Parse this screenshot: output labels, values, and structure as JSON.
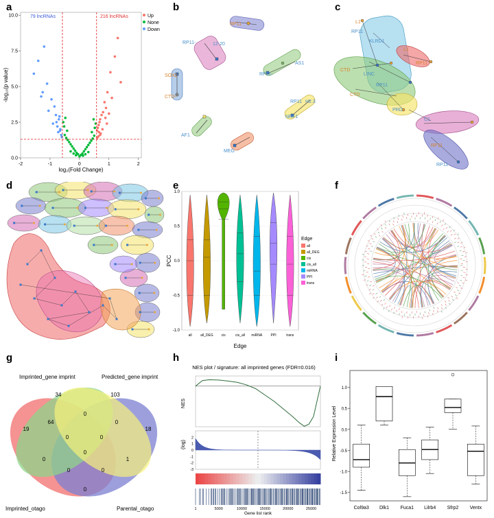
{
  "panel_labels": {
    "a": "a",
    "b": "b",
    "c": "c",
    "d": "d",
    "e": "e",
    "f": "f",
    "g": "g",
    "h": "h",
    "i": "i"
  },
  "panel_a": {
    "left_count": "79 lncRNAs",
    "right_count": "216 lncRNAs",
    "legend": [
      "Up",
      "None",
      "Down"
    ],
    "colors": {
      "Up": "#f8766d",
      "None": "#00ba38",
      "Down": "#619cff",
      "threshold": "#e41a1c"
    },
    "xlabel": "log₂(Fold Change)",
    "ylabel": "-log₁₀(p value)",
    "chart_data": {
      "type": "scatter",
      "xlim": [
        -2,
        2.1
      ],
      "ylim": [
        0,
        10.2
      ],
      "x_ticks": [
        "-2",
        "-1",
        "0",
        "1",
        "2"
      ],
      "y_ticks": [
        "0.0",
        "2.5",
        "5.0",
        "7.5",
        "10.0"
      ],
      "thresholds": {
        "x": [
          -0.58,
          0.58
        ],
        "y": 1.3
      },
      "series": [
        {
          "name": "Down",
          "points": [
            [
              -1.2,
              7.8
            ],
            [
              -1.4,
              6.8
            ],
            [
              -1.55,
              5.9
            ],
            [
              -1.1,
              5.2
            ],
            [
              -1.25,
              4.6
            ],
            [
              -0.95,
              4.1
            ],
            [
              -0.85,
              3.6
            ],
            [
              -1.05,
              3.3
            ],
            [
              -0.8,
              3.0
            ],
            [
              -0.7,
              2.7
            ],
            [
              -0.9,
              2.4
            ],
            [
              -0.75,
              2.2
            ],
            [
              -0.65,
              2.0
            ],
            [
              -0.72,
              1.8
            ],
            [
              -0.62,
              1.6
            ],
            [
              -0.6,
              1.45
            ],
            [
              -0.68,
              2.9
            ],
            [
              -1.3,
              4.3
            ],
            [
              -0.78,
              2.5
            ],
            [
              -0.66,
              1.9
            ]
          ]
        },
        {
          "name": "Up",
          "points": [
            [
              1.3,
              8.4
            ],
            [
              1.2,
              7.1
            ],
            [
              1.05,
              6.0
            ],
            [
              1.4,
              5.3
            ],
            [
              0.95,
              4.6
            ],
            [
              1.1,
              4.2
            ],
            [
              0.85,
              3.9
            ],
            [
              0.9,
              3.5
            ],
            [
              0.8,
              3.2
            ],
            [
              0.75,
              3.0
            ],
            [
              0.7,
              2.7
            ],
            [
              0.68,
              2.5
            ],
            [
              0.65,
              2.3
            ],
            [
              0.62,
              2.1
            ],
            [
              0.6,
              1.9
            ],
            [
              0.72,
              1.7
            ],
            [
              0.64,
              1.5
            ],
            [
              0.6,
              1.4
            ],
            [
              0.88,
              2.8
            ],
            [
              1.0,
              3.1
            ],
            [
              0.78,
              2.0
            ],
            [
              0.7,
              1.6
            ],
            [
              0.93,
              2.4
            ],
            [
              0.66,
              1.8
            ]
          ]
        },
        {
          "name": "None",
          "points": [
            [
              0,
              0.1
            ],
            [
              0.05,
              0.2
            ],
            [
              -0.05,
              0.25
            ],
            [
              0.1,
              0.3
            ],
            [
              -0.1,
              0.35
            ],
            [
              0.15,
              0.45
            ],
            [
              -0.15,
              0.5
            ],
            [
              0.2,
              0.6
            ],
            [
              -0.2,
              0.65
            ],
            [
              0.25,
              0.75
            ],
            [
              -0.25,
              0.8
            ],
            [
              0.3,
              0.9
            ],
            [
              -0.3,
              0.95
            ],
            [
              0.35,
              1.05
            ],
            [
              -0.35,
              1.1
            ],
            [
              0.4,
              1.2
            ],
            [
              -0.4,
              1.25
            ],
            [
              0.45,
              1.35
            ],
            [
              -0.45,
              1.4
            ],
            [
              0.5,
              1.55
            ],
            [
              -0.5,
              1.6
            ],
            [
              0.42,
              1.8
            ],
            [
              -0.42,
              1.9
            ],
            [
              0.52,
              2.1
            ],
            [
              -0.52,
              2.2
            ],
            [
              0.55,
              2.4
            ],
            [
              -0.55,
              2.5
            ],
            [
              0.48,
              2.7
            ],
            [
              -0.48,
              2.8
            ],
            [
              0.3,
              0.4
            ],
            [
              -0.3,
              0.45
            ],
            [
              0.2,
              0.25
            ],
            [
              -0.2,
              0.3
            ],
            [
              0.12,
              0.15
            ],
            [
              -0.12,
              0.18
            ]
          ]
        }
      ]
    }
  },
  "panel_b": {
    "node_labels": [
      "RP11",
      "12-20",
      "RP11-",
      "RP11-",
      "SOX2",
      "CTD-",
      "ODIS",
      "AS1",
      "RP11",
      "H2.3",
      "NRF1",
      "AF1",
      "MEG",
      "RP11"
    ]
  },
  "panel_c": {
    "node_labels": [
      "L1",
      "RP11",
      "KLRD1",
      "L1",
      "RP11",
      "CTD",
      "LINC",
      "RP11",
      "C1",
      "PRD",
      "CTD",
      "RP11",
      "RP11"
    ]
  },
  "panel_e": {
    "legend_title": "Edge",
    "xlabel": "Edge",
    "ylabel": "PCC",
    "y_ticks": [
      "1.0",
      "0.5",
      "0.0",
      "-0.5",
      "-1.0"
    ],
    "chart_data": {
      "type": "violin",
      "ylim": [
        -1,
        1
      ],
      "categories": [
        "all",
        "all_DEG",
        "cis",
        "cis_all",
        "miRNA",
        "PPI",
        "trans"
      ],
      "series": [
        {
          "name": "all",
          "color": "#f8766d",
          "median": 0.0,
          "q1": -0.5,
          "q3": 0.3,
          "min": -0.95,
          "max": 0.95
        },
        {
          "name": "all_DEG",
          "color": "#c49a00",
          "median": 0.05,
          "q1": -0.5,
          "q3": 0.3,
          "min": -0.9,
          "max": 0.95
        },
        {
          "name": "cis",
          "color": "#53b400",
          "median": 0.75,
          "q1": 0.6,
          "q3": 0.85,
          "min": -0.7,
          "max": 0.98
        },
        {
          "name": "cis_all",
          "color": "#00c094",
          "median": 0.1,
          "q1": -0.3,
          "q3": 0.4,
          "min": -0.9,
          "max": 0.95
        },
        {
          "name": "miRNA",
          "color": "#00b6eb",
          "median": -0.15,
          "q1": -0.5,
          "q3": 0.35,
          "min": -0.95,
          "max": 0.95
        },
        {
          "name": "PPI",
          "color": "#a58aff",
          "median": 0.25,
          "q1": -0.05,
          "q3": 0.55,
          "min": -0.9,
          "max": 0.98
        },
        {
          "name": "trans",
          "color": "#fb61d7",
          "median": -0.05,
          "q1": -0.5,
          "q3": 0.35,
          "min": -0.95,
          "max": 0.95
        }
      ]
    }
  },
  "panel_g": {
    "sets": [
      "Imprinted_gene imprint",
      "Predicted_gene imprint",
      "Imprinted_otago",
      "Parental_otago"
    ],
    "colors": [
      "#8fd38a",
      "#f6f17a",
      "#f26d6d",
      "#7b7fd0"
    ],
    "regions": [
      {
        "value": "34"
      },
      {
        "value": "103"
      },
      {
        "value": "19"
      },
      {
        "value": "18"
      },
      {
        "value": "64"
      },
      {
        "value": "0"
      },
      {
        "value": "0"
      },
      {
        "value": "0"
      },
      {
        "value": "0"
      },
      {
        "value": "0"
      },
      {
        "value": "0"
      },
      {
        "value": "1"
      },
      {
        "value": "0"
      },
      {
        "value": "0"
      },
      {
        "value": "0"
      }
    ]
  },
  "panel_h": {
    "title": "NES plot / signature: all imprinted genes (FDR=0.016)",
    "nes_label": "NES",
    "rank_label": "(log)",
    "xlabel": "Gene list rank",
    "x_ticks": [
      "1",
      "5000",
      "10000",
      "15000",
      "20000",
      "25000"
    ],
    "rank_ticks": [
      "2",
      "1",
      "0",
      "-1",
      "-2",
      "-3"
    ],
    "chart_data": {
      "type": "line",
      "xlim": [
        1,
        27000
      ],
      "ylim": [
        -1.6,
        0.4
      ],
      "x": [
        1,
        1500,
        3000,
        5000,
        7000,
        9000,
        11000,
        13000,
        15000,
        17000,
        19000,
        21000,
        22500,
        23500,
        24500,
        25500,
        26500,
        27000
      ],
      "y": [
        0,
        0.22,
        0.25,
        0.24,
        0.2,
        0.15,
        0.05,
        -0.1,
        -0.35,
        -0.6,
        -0.9,
        -1.2,
        -1.45,
        -1.58,
        -1.5,
        -1.2,
        -0.4,
        0.0
      ],
      "cutoff_rank": 13500
    }
  },
  "panel_i": {
    "ylabel": "Relative Expression Level",
    "y_ticks": [
      "1.0",
      "0.5",
      "0.0",
      "-0.5",
      "-1.0",
      "-1.5"
    ],
    "chart_data": {
      "type": "box",
      "ylim": [
        -1.7,
        1.4
      ],
      "categories": [
        "Col9a3",
        "Dlk1",
        "Fuca1",
        "Lilrb4",
        "Sfrp2",
        "Ventx"
      ],
      "series": [
        {
          "name": "Col9a3",
          "min": -1.45,
          "q1": -0.9,
          "median": -0.72,
          "q3": -0.35,
          "max": 0.1
        },
        {
          "name": "Dlk1",
          "min": 0.1,
          "q1": 0.2,
          "median": 0.78,
          "q3": 1.02,
          "max": 1.02
        },
        {
          "name": "Fuca1",
          "min": -1.6,
          "q1": -1.1,
          "median": -0.8,
          "q3": -0.48,
          "max": -0.2
        },
        {
          "name": "Lilrb4",
          "min": -1.05,
          "q1": -0.72,
          "median": -0.48,
          "q3": -0.25,
          "max": 0.05
        },
        {
          "name": "Sfrp2",
          "min": 0.0,
          "q1": 0.4,
          "median": 0.52,
          "q3": 0.72,
          "max": 0.72,
          "outlier": 1.3
        },
        {
          "name": "Ventx",
          "min": -1.3,
          "q1": -1.1,
          "median": -0.52,
          "q3": -0.35,
          "max": 0.08
        }
      ]
    }
  }
}
